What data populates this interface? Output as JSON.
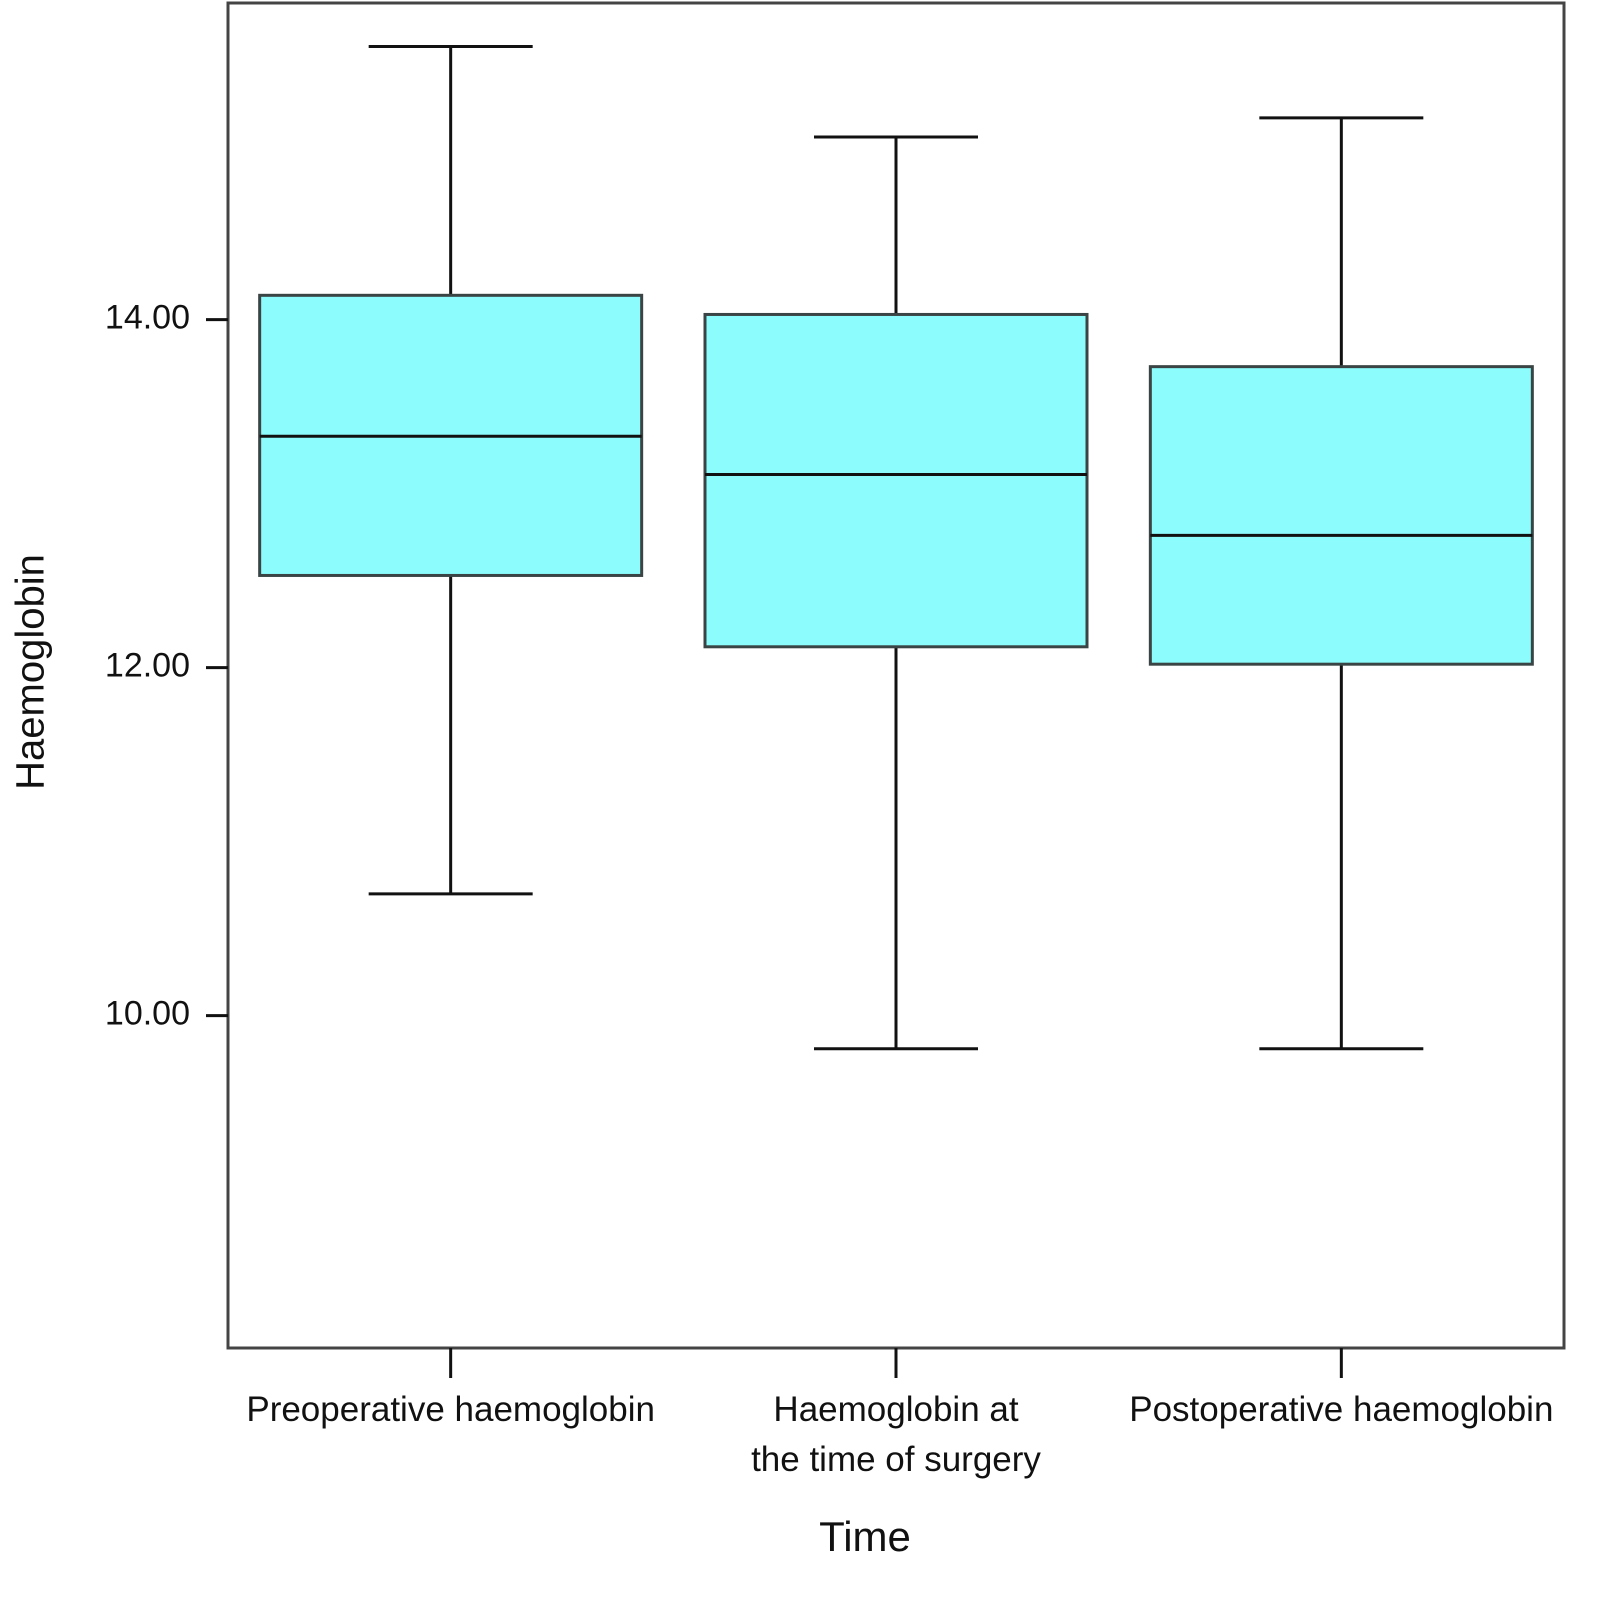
{
  "chart_data": {
    "type": "box",
    "x_label": "Time",
    "y_label": "Haemoglobin",
    "categories": [
      "Preoperative haemoglobin",
      "Haemoglobin at\nthe time of surgery",
      "Postoperative haemoglobin"
    ],
    "boxes": [
      {
        "min": 10.7,
        "q1": 12.53,
        "median": 13.33,
        "q3": 14.14,
        "max": 15.57
      },
      {
        "min": 9.81,
        "q1": 12.12,
        "median": 13.11,
        "q3": 14.03,
        "max": 15.05
      },
      {
        "min": 9.81,
        "q1": 12.02,
        "median": 12.76,
        "q3": 13.73,
        "max": 15.16
      }
    ],
    "color": "#8cfdfc",
    "ylim": [
      8.09,
      15.82
    ],
    "yticks": [
      {
        "value": 10,
        "label": "10.00"
      },
      {
        "value": 12,
        "label": "12.00"
      },
      {
        "value": 14,
        "label": "14.00"
      }
    ]
  }
}
